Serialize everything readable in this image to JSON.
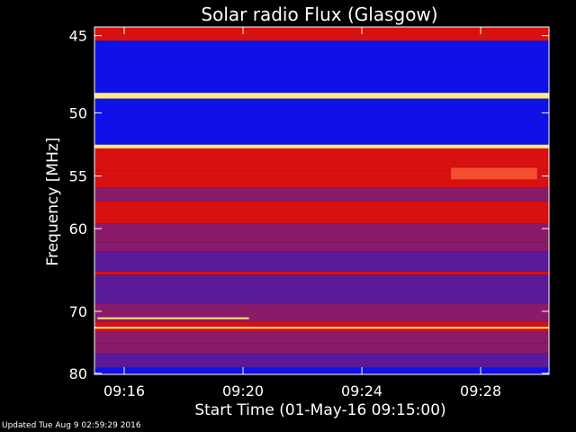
{
  "chart_data": {
    "type": "heatmap",
    "title": "Solar radio Flux (Glasgow)",
    "xlabel": "Start Time (01-May-16 09:15:00)",
    "ylabel": "Frequency [MHz]",
    "x_unit": "minutes after 09:15:00",
    "xlim": [
      0.0,
      15.3
    ],
    "ylim": [
      44.5,
      80.2
    ],
    "y_scale": "reciprocal (frequency decreasing upward from 80 to 45 MHz)",
    "y_ticks": [
      45,
      50,
      55,
      60,
      70,
      80
    ],
    "y_tick_labels": [
      "45",
      "50",
      "55",
      "60",
      "70",
      "80"
    ],
    "x_ticks": [
      1,
      5,
      9,
      13
    ],
    "x_tick_labels": [
      "09:16",
      "09:20",
      "09:24",
      "09:28"
    ],
    "grid": false,
    "colormap": "blue-red-yellow (low to high flux)",
    "frequency_bands": [
      {
        "mhz": [
          44.5,
          45.3
        ],
        "level": "high"
      },
      {
        "mhz": [
          45.3,
          48.6
        ],
        "level": "very low"
      },
      {
        "mhz": [
          48.6,
          49.0
        ],
        "level": "very high"
      },
      {
        "mhz": [
          49.0,
          52.4
        ],
        "level": "very low"
      },
      {
        "mhz": [
          52.4,
          52.7
        ],
        "level": "very high"
      },
      {
        "mhz": [
          52.7,
          54.5
        ],
        "level": "high"
      },
      {
        "mhz": [
          54.5,
          56.0
        ],
        "level": "high"
      },
      {
        "mhz": [
          56.0,
          57.3
        ],
        "level": "medium"
      },
      {
        "mhz": [
          57.3,
          59.5
        ],
        "level": "high"
      },
      {
        "mhz": [
          59.5,
          61.5
        ],
        "level": "medium"
      },
      {
        "mhz": [
          61.5,
          62.5
        ],
        "level": "medium"
      },
      {
        "mhz": [
          62.5,
          64.8
        ],
        "level": "low"
      },
      {
        "mhz": [
          64.8,
          65.2
        ],
        "level": "high"
      },
      {
        "mhz": [
          65.2,
          69.0
        ],
        "level": "low"
      },
      {
        "mhz": [
          69.0,
          71.5
        ],
        "level": "medium"
      },
      {
        "mhz": [
          71.5,
          73.0
        ],
        "level": "high"
      },
      {
        "mhz": [
          73.0,
          74.8
        ],
        "level": "medium"
      },
      {
        "mhz": [
          74.8,
          76.5
        ],
        "level": "medium"
      },
      {
        "mhz": [
          76.5,
          79.0
        ],
        "level": "low"
      },
      {
        "mhz": [
          79.0,
          80.2
        ],
        "level": "very low"
      }
    ],
    "features": [
      {
        "type": "bright line",
        "mhz": 71.0,
        "minutes": [
          0.1,
          5.2
        ]
      },
      {
        "type": "bright line",
        "mhz": 72.4,
        "minutes": [
          0.0,
          15.3
        ]
      },
      {
        "type": "brighter patch",
        "mhz": [
          54.3,
          55.3
        ],
        "minutes": [
          12.0,
          14.9
        ]
      }
    ]
  },
  "colors": {
    "background": "#000000",
    "text": "#ffffff",
    "blue_band": "#1010e8",
    "red_band": "#d81010",
    "yellow_line": "#ffe880",
    "purple_band": "#7a1a8a"
  },
  "footer": {
    "updated": "Updated Tue Aug  9 02:59:29 2016"
  }
}
